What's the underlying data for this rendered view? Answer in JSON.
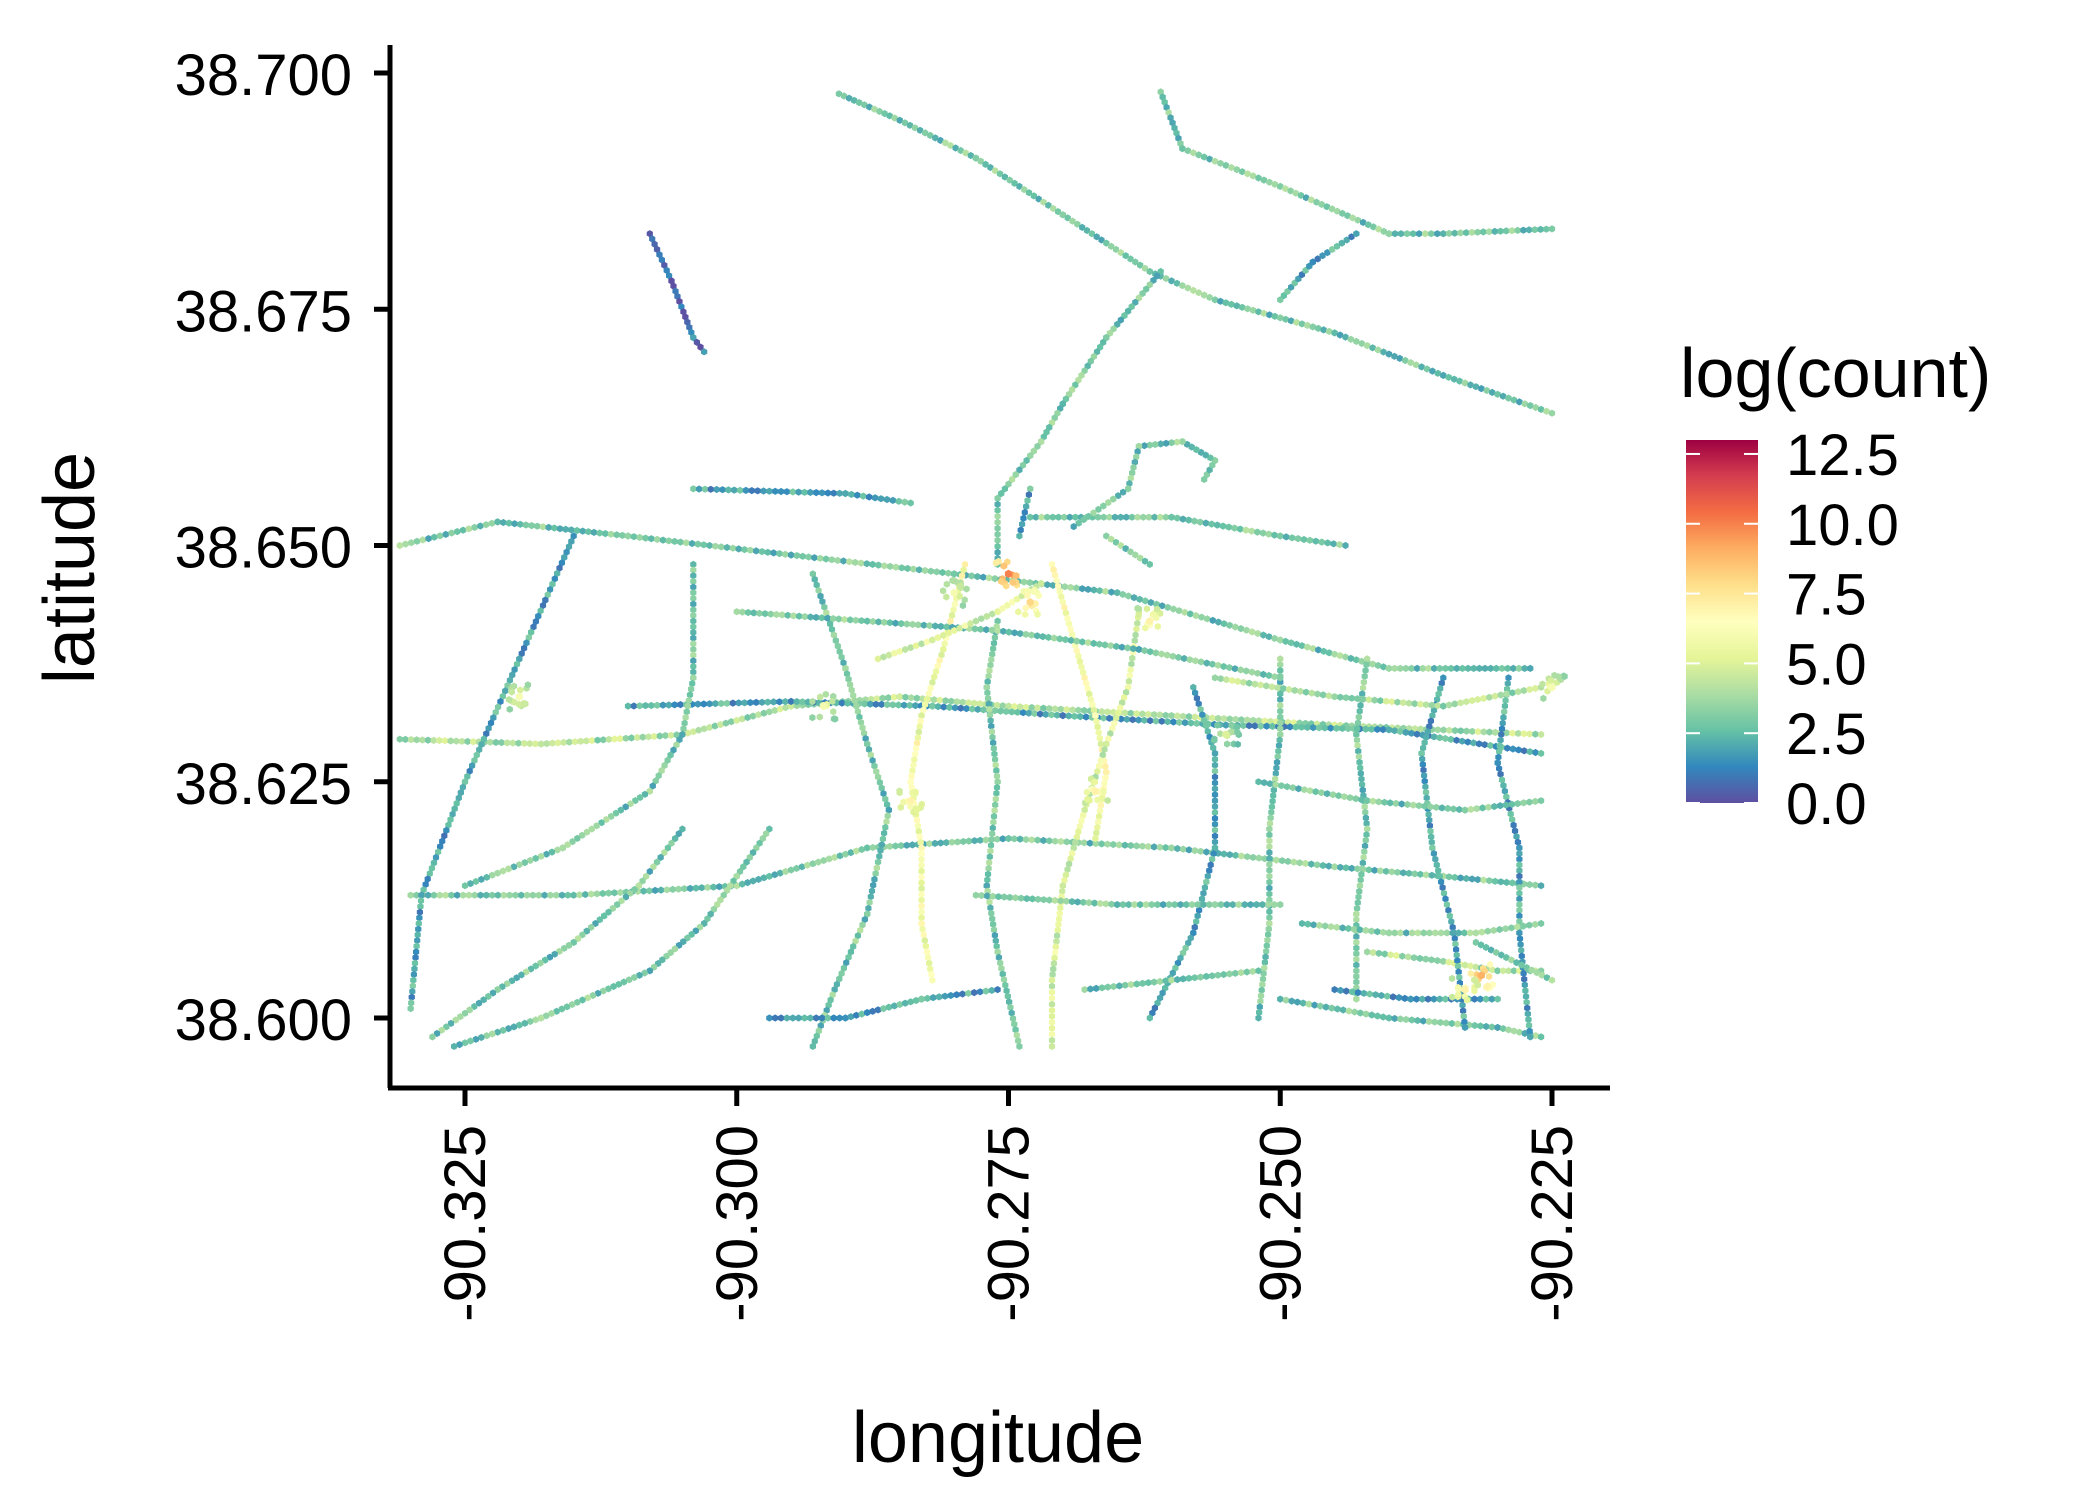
{
  "chart_data": {
    "type": "heatmap",
    "subtype": "hexbin-map",
    "xlabel": "longitude",
    "ylabel": "latitude",
    "xlim": [
      -90.3318,
      -90.2195
    ],
    "ylim": [
      38.592,
      38.703
    ],
    "x_ticks": [
      -90.325,
      -90.3,
      -90.275,
      -90.25,
      -90.225
    ],
    "x_tick_labels": [
      "-90.325",
      "-90.300",
      "-90.275",
      "-90.250",
      "-90.225"
    ],
    "y_ticks": [
      38.6,
      38.625,
      38.65,
      38.675,
      38.7
    ],
    "y_tick_labels": [
      "38.600",
      "38.625",
      "38.650",
      "38.675",
      "38.700"
    ],
    "grid": false,
    "legend": {
      "title": "log(count)",
      "placement": "right",
      "range": [
        0,
        13
      ],
      "ticks": [
        0.0,
        2.5,
        5.0,
        7.5,
        10.0,
        12.5
      ],
      "tick_labels": [
        "0.0",
        "2.5",
        "5.0",
        "7.5",
        "10.0",
        "12.5"
      ],
      "palette": [
        "#5E4FA2",
        "#3288BD",
        "#66C2A5",
        "#ABDDA4",
        "#E6F598",
        "#FFFFBF",
        "#FEE08B",
        "#FDAE61",
        "#F46D43",
        "#D53E4F",
        "#9E0142"
      ]
    },
    "tracks": [
      {
        "v": 3,
        "points": [
          [
            -90.2906,
            38.6978
          ],
          [
            -90.285,
            38.695
          ],
          [
            -90.278,
            38.691
          ],
          [
            -90.27,
            38.685
          ],
          [
            -90.262,
            38.679
          ],
          [
            -90.256,
            38.676
          ],
          [
            -90.245,
            38.6725
          ],
          [
            -90.235,
            38.668
          ],
          [
            -90.225,
            38.664
          ]
        ]
      },
      {
        "v": 3,
        "points": [
          [
            -90.261,
            38.698
          ],
          [
            -90.259,
            38.692
          ],
          [
            -90.25,
            38.688
          ],
          [
            -90.24,
            38.683
          ],
          [
            -90.235,
            38.683
          ],
          [
            -90.225,
            38.6835
          ]
        ]
      },
      {
        "v": 3,
        "points": [
          [
            -90.261,
            38.679
          ],
          [
            -90.266,
            38.672
          ],
          [
            -90.27,
            38.665
          ],
          [
            -90.272,
            38.661
          ],
          [
            -90.276,
            38.655
          ],
          [
            -90.276,
            38.648
          ]
        ]
      },
      {
        "v": 2,
        "points": [
          [
            -90.25,
            38.676
          ],
          [
            -90.247,
            38.68
          ],
          [
            -90.243,
            38.683
          ]
        ]
      },
      {
        "v": 1,
        "points": [
          [
            -90.308,
            38.683
          ],
          [
            -90.306,
            38.678
          ],
          [
            -90.304,
            38.672
          ],
          [
            -90.303,
            38.6705
          ]
        ]
      },
      {
        "v": 3,
        "points": [
          [
            -90.331,
            38.65
          ],
          [
            -90.322,
            38.6525
          ],
          [
            -90.31,
            38.651
          ],
          [
            -90.295,
            38.649
          ],
          [
            -90.28,
            38.647
          ],
          [
            -90.265,
            38.645
          ],
          [
            -90.25,
            38.64
          ],
          [
            -90.24,
            38.637
          ],
          [
            -90.227,
            38.637
          ]
        ]
      },
      {
        "v": 4,
        "points": [
          [
            -90.331,
            38.6295
          ],
          [
            -90.318,
            38.629
          ],
          [
            -90.305,
            38.63
          ],
          [
            -90.295,
            38.633
          ],
          [
            -90.285,
            38.634
          ],
          [
            -90.275,
            38.633
          ],
          [
            -90.26,
            38.632
          ],
          [
            -90.245,
            38.631
          ],
          [
            -90.226,
            38.63
          ]
        ]
      },
      {
        "v": 2,
        "points": [
          [
            -90.31,
            38.633
          ],
          [
            -90.295,
            38.6335
          ],
          [
            -90.282,
            38.633
          ],
          [
            -90.27,
            38.632
          ],
          [
            -90.255,
            38.631
          ],
          [
            -90.24,
            38.6305
          ],
          [
            -90.226,
            38.628
          ]
        ]
      },
      {
        "v": 3,
        "points": [
          [
            -90.33,
            38.613
          ],
          [
            -90.315,
            38.613
          ],
          [
            -90.3,
            38.614
          ],
          [
            -90.288,
            38.618
          ],
          [
            -90.275,
            38.619
          ],
          [
            -90.26,
            38.618
          ],
          [
            -90.245,
            38.616
          ],
          [
            -90.235,
            38.615
          ],
          [
            -90.226,
            38.614
          ]
        ]
      },
      {
        "v": 4,
        "points": [
          [
            -90.242,
            38.607
          ],
          [
            -90.235,
            38.606
          ],
          [
            -90.23,
            38.605
          ],
          [
            -90.226,
            38.605
          ]
        ]
      },
      {
        "v": 3,
        "points": [
          [
            -90.25,
            38.602
          ],
          [
            -90.24,
            38.6
          ],
          [
            -90.23,
            38.599
          ],
          [
            -90.226,
            38.598
          ]
        ]
      },
      {
        "v": 2,
        "points": [
          [
            -90.304,
            38.656
          ],
          [
            -90.29,
            38.6555
          ],
          [
            -90.284,
            38.6545
          ]
        ]
      },
      {
        "v": 3,
        "points": [
          [
            -90.273,
            38.653
          ],
          [
            -90.26,
            38.653
          ],
          [
            -90.25,
            38.651
          ],
          [
            -90.244,
            38.65
          ]
        ]
      },
      {
        "v": 3,
        "points": [
          [
            -90.266,
            38.651
          ],
          [
            -90.262,
            38.648
          ]
        ]
      },
      {
        "v": 3,
        "points": [
          [
            -90.257,
            38.657
          ],
          [
            -90.256,
            38.659
          ],
          [
            -90.259,
            38.661
          ],
          [
            -90.263,
            38.6605
          ],
          [
            -90.264,
            38.656
          ],
          [
            -90.269,
            38.652
          ]
        ]
      },
      {
        "v": 2,
        "points": [
          [
            -90.273,
            38.656
          ],
          [
            -90.274,
            38.651
          ]
        ]
      },
      {
        "v": 2,
        "points": [
          [
            -90.315,
            38.651
          ],
          [
            -90.32,
            38.638
          ],
          [
            -90.325,
            38.625
          ],
          [
            -90.329,
            38.613
          ],
          [
            -90.33,
            38.601
          ]
        ]
      },
      {
        "v": 3,
        "points": [
          [
            -90.304,
            38.648
          ],
          [
            -90.304,
            38.636
          ],
          [
            -90.305,
            38.63
          ],
          [
            -90.308,
            38.624
          ],
          [
            -90.316,
            38.618
          ],
          [
            -90.325,
            38.614
          ]
        ]
      },
      {
        "v": 3,
        "points": [
          [
            -90.305,
            38.62
          ],
          [
            -90.309,
            38.614
          ],
          [
            -90.315,
            38.608
          ],
          [
            -90.322,
            38.603
          ],
          [
            -90.328,
            38.598
          ]
        ]
      },
      {
        "v": 3,
        "points": [
          [
            -90.297,
            38.62
          ],
          [
            -90.3,
            38.615
          ],
          [
            -90.303,
            38.61
          ],
          [
            -90.308,
            38.605
          ],
          [
            -90.318,
            38.6
          ],
          [
            -90.326,
            38.597
          ]
        ]
      },
      {
        "v": 3,
        "points": [
          [
            -90.293,
            38.647
          ],
          [
            -90.29,
            38.637
          ],
          [
            -90.288,
            38.629
          ],
          [
            -90.286,
            38.622
          ],
          [
            -90.288,
            38.611
          ],
          [
            -90.291,
            38.603
          ],
          [
            -90.293,
            38.597
          ]
        ]
      },
      {
        "v": 6,
        "points": [
          [
            -90.279,
            38.648
          ],
          [
            -90.281,
            38.639
          ],
          [
            -90.283,
            38.632
          ],
          [
            -90.284,
            38.625
          ],
          [
            -90.283,
            38.618
          ],
          [
            -90.283,
            38.61
          ],
          [
            -90.282,
            38.604
          ]
        ]
      },
      {
        "v": 6,
        "points": [
          [
            -90.271,
            38.648
          ],
          [
            -90.269,
            38.64
          ],
          [
            -90.267,
            38.632
          ],
          [
            -90.266,
            38.626
          ],
          [
            -90.267,
            38.619
          ]
        ]
      },
      {
        "v": 5,
        "points": [
          [
            -90.263,
            38.643
          ],
          [
            -90.264,
            38.635
          ],
          [
            -90.266,
            38.629
          ],
          [
            -90.268,
            38.622
          ],
          [
            -90.27,
            38.614
          ],
          [
            -90.271,
            38.604
          ],
          [
            -90.271,
            38.597
          ]
        ]
      },
      {
        "v": 3,
        "points": [
          [
            -90.276,
            38.642
          ],
          [
            -90.277,
            38.635
          ],
          [
            -90.276,
            38.625
          ],
          [
            -90.277,
            38.614
          ],
          [
            -90.276,
            38.607
          ],
          [
            -90.274,
            38.597
          ]
        ]
      },
      {
        "v": 2,
        "points": [
          [
            -90.258,
            38.635
          ],
          [
            -90.256,
            38.628
          ],
          [
            -90.256,
            38.618
          ],
          [
            -90.258,
            38.609
          ],
          [
            -90.262,
            38.6
          ]
        ]
      },
      {
        "v": 3,
        "points": [
          [
            -90.25,
            38.638
          ],
          [
            -90.25,
            38.63
          ],
          [
            -90.251,
            38.62
          ],
          [
            -90.251,
            38.61
          ],
          [
            -90.252,
            38.6
          ]
        ]
      },
      {
        "v": 3,
        "points": [
          [
            -90.242,
            38.638
          ],
          [
            -90.243,
            38.63
          ],
          [
            -90.242,
            38.62
          ],
          [
            -90.243,
            38.611
          ],
          [
            -90.243,
            38.602
          ]
        ]
      },
      {
        "v": 2,
        "points": [
          [
            -90.235,
            38.636
          ],
          [
            -90.237,
            38.628
          ],
          [
            -90.236,
            38.618
          ],
          [
            -90.234,
            38.609
          ],
          [
            -90.233,
            38.599
          ]
        ]
      },
      {
        "v": 2,
        "points": [
          [
            -90.229,
            38.636
          ],
          [
            -90.23,
            38.627
          ],
          [
            -90.228,
            38.618
          ],
          [
            -90.228,
            38.609
          ],
          [
            -90.227,
            38.598
          ]
        ]
      },
      {
        "v": 4,
        "points": [
          [
            -90.256,
            38.636
          ],
          [
            -90.245,
            38.634
          ],
          [
            -90.235,
            38.633
          ],
          [
            -90.226,
            38.635
          ]
        ]
      },
      {
        "v": 3,
        "points": [
          [
            -90.3,
            38.643
          ],
          [
            -90.288,
            38.642
          ],
          [
            -90.276,
            38.641
          ],
          [
            -90.263,
            38.639
          ],
          [
            -90.25,
            38.636
          ]
        ]
      },
      {
        "v": 3,
        "points": [
          [
            -90.252,
            38.625
          ],
          [
            -90.242,
            38.623
          ],
          [
            -90.233,
            38.622
          ],
          [
            -90.226,
            38.623
          ]
        ]
      },
      {
        "v": 3,
        "points": [
          [
            -90.248,
            38.61
          ],
          [
            -90.24,
            38.609
          ],
          [
            -90.232,
            38.609
          ],
          [
            -90.226,
            38.61
          ]
        ]
      },
      {
        "v": 2,
        "points": [
          [
            -90.245,
            38.603
          ],
          [
            -90.238,
            38.602
          ],
          [
            -90.23,
            38.602
          ]
        ]
      },
      {
        "v": 3,
        "points": [
          [
            -90.278,
            38.613
          ],
          [
            -90.265,
            38.612
          ],
          [
            -90.256,
            38.612
          ],
          [
            -90.25,
            38.612
          ]
        ]
      },
      {
        "v": 3,
        "points": [
          [
            -90.268,
            38.603
          ],
          [
            -90.26,
            38.604
          ],
          [
            -90.252,
            38.605
          ]
        ]
      },
      {
        "v": 2,
        "points": [
          [
            -90.297,
            38.6
          ],
          [
            -90.29,
            38.6
          ],
          [
            -90.283,
            38.602
          ],
          [
            -90.276,
            38.603
          ]
        ]
      },
      {
        "v": 3,
        "points": [
          [
            -90.232,
            38.608
          ],
          [
            -90.225,
            38.604
          ]
        ]
      },
      {
        "v": 5,
        "points": [
          [
            -90.287,
            38.638
          ],
          [
            -90.282,
            38.64
          ],
          [
            -90.276,
            38.643
          ],
          [
            -90.272,
            38.646
          ]
        ]
      }
    ],
    "hotspots": [
      {
        "x": -90.275,
        "y": 38.647,
        "v": 10
      },
      {
        "x": -90.2315,
        "y": 38.6045,
        "v": 9
      },
      {
        "x": -90.262,
        "y": 38.642,
        "v": 7
      },
      {
        "x": -90.284,
        "y": 38.623,
        "v": 7
      },
      {
        "x": -90.267,
        "y": 38.624,
        "v": 7
      },
      {
        "x": -90.32,
        "y": 38.634,
        "v": 6
      },
      {
        "x": -90.225,
        "y": 38.635,
        "v": 6
      },
      {
        "x": -90.28,
        "y": 38.645,
        "v": 6
      },
      {
        "x": -90.273,
        "y": 38.644,
        "v": 8
      },
      {
        "x": -90.233,
        "y": 38.603,
        "v": 7
      },
      {
        "x": -90.292,
        "y": 38.633,
        "v": 6
      },
      {
        "x": -90.255,
        "y": 38.63,
        "v": 5
      }
    ]
  }
}
